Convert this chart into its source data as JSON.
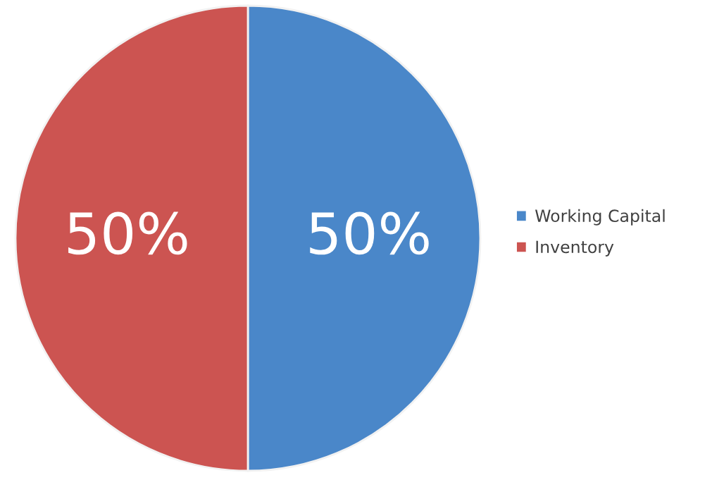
{
  "chart_data": {
    "type": "pie",
    "categories": [
      "Working Capital",
      "Inventory"
    ],
    "values": [
      50,
      50
    ],
    "colors": [
      "#4a87c9",
      "#cc5451"
    ],
    "value_labels": [
      "50%",
      "50%"
    ],
    "legend": "right"
  }
}
